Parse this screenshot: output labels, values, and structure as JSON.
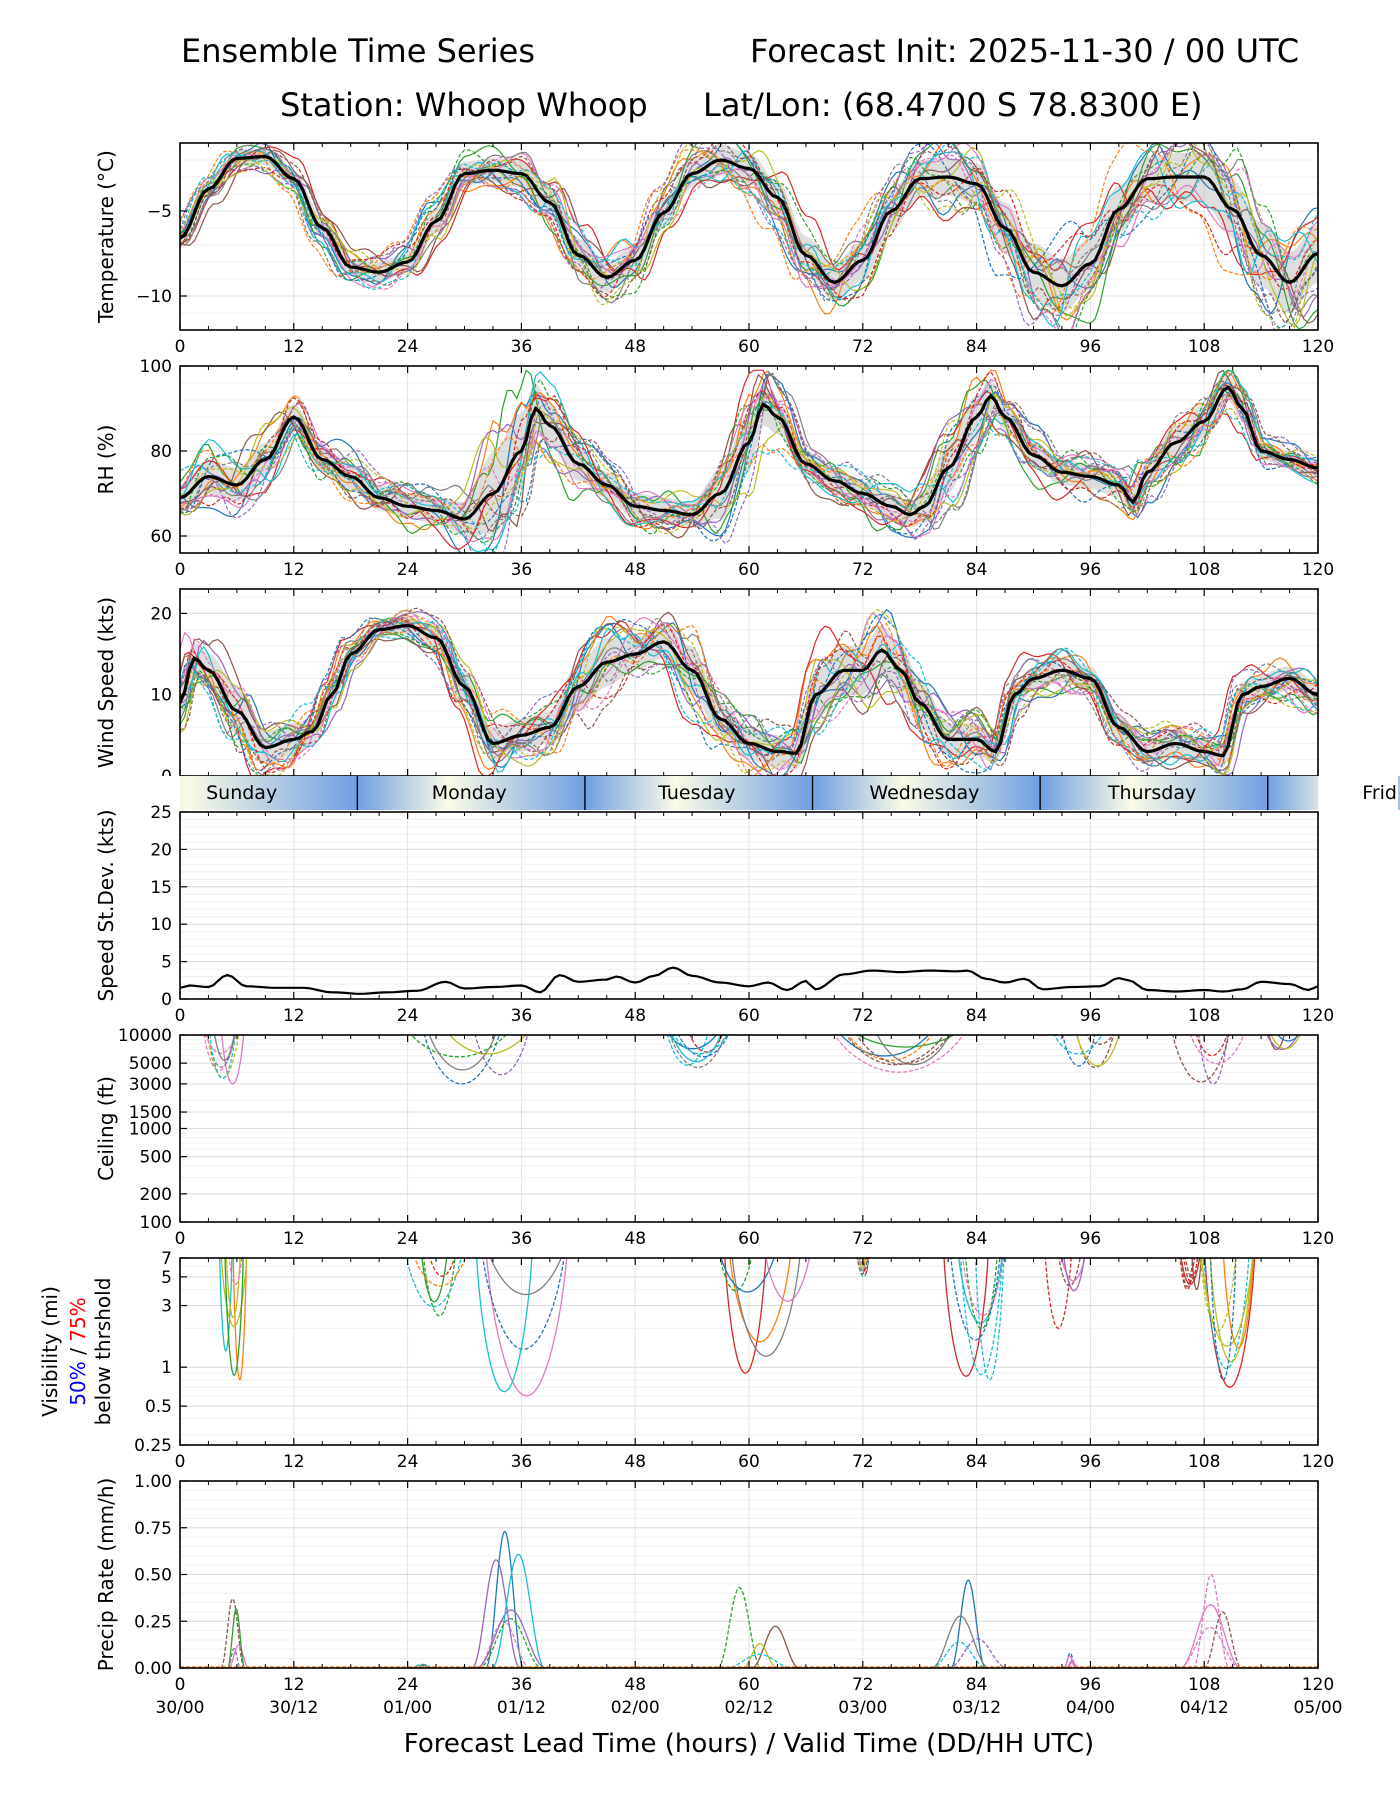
{
  "header": {
    "title_left": "Ensemble Time Series",
    "title_right": "Forecast Init: 2025-11-30 / 00 UTC",
    "station": "Station: Whoop Whoop",
    "latlon": "Lat/Lon: (68.4700 S 78.8300 E)"
  },
  "colors": {
    "ensemble": [
      "#1f77b4",
      "#ff7f0e",
      "#2ca02c",
      "#d62728",
      "#9467bd",
      "#8c564b",
      "#e377c2",
      "#7f7f7f",
      "#bcbd22",
      "#17becf"
    ],
    "mean": "#000000",
    "spread": "#c8c8c8",
    "day_blue": "#6f9fe2",
    "day_cream": "#fbfbe6",
    "vis_50": "#0000ff",
    "vis_75": "#ff0000"
  },
  "chart_data": [
    {
      "type": "line",
      "id": "temp",
      "ylabel": "Temperature (°C)",
      "ylim": [
        -12,
        -1
      ],
      "yticks": [
        -10,
        -5
      ],
      "ytick_labels": [
        "−10",
        "−5"
      ],
      "mean": [
        [
          0,
          -6.6
        ],
        [
          3,
          -3.7
        ],
        [
          6,
          -1.9
        ],
        [
          9,
          -1.8
        ],
        [
          12,
          -3.1
        ],
        [
          15,
          -6.0
        ],
        [
          18,
          -8.3
        ],
        [
          21,
          -8.6
        ],
        [
          24,
          -8.0
        ],
        [
          27,
          -5.6
        ],
        [
          30,
          -2.8
        ],
        [
          33,
          -2.6
        ],
        [
          36,
          -2.8
        ],
        [
          39,
          -4.5
        ],
        [
          42,
          -7.6
        ],
        [
          45,
          -8.9
        ],
        [
          48,
          -7.9
        ],
        [
          51,
          -5.1
        ],
        [
          54,
          -2.8
        ],
        [
          57,
          -2.0
        ],
        [
          60,
          -2.5
        ],
        [
          63,
          -4.2
        ],
        [
          66,
          -7.6
        ],
        [
          69,
          -9.2
        ],
        [
          72,
          -7.9
        ],
        [
          75,
          -5.0
        ],
        [
          78,
          -3.1
        ],
        [
          81,
          -3.0
        ],
        [
          84,
          -3.4
        ],
        [
          87,
          -6.0
        ],
        [
          90,
          -8.6
        ],
        [
          93,
          -9.4
        ],
        [
          96,
          -8.1
        ],
        [
          99,
          -4.9
        ],
        [
          102,
          -3.1
        ],
        [
          105,
          -3.0
        ],
        [
          108,
          -3.0
        ],
        [
          111,
          -4.9
        ],
        [
          114,
          -7.6
        ],
        [
          117,
          -9.2
        ],
        [
          120,
          -7.5
        ]
      ],
      "spread": [
        0.4,
        0.4,
        0.5,
        0.5,
        0.5,
        0.6,
        0.5,
        0.6,
        0.6,
        0.7,
        0.7,
        0.7,
        0.8,
        0.9,
        1.0,
        0.9,
        0.9,
        0.9,
        0.8,
        0.9,
        0.9,
        1.0,
        1.1,
        1.1,
        1.2,
        1.2,
        1.1,
        1.1,
        1.2,
        1.5,
        1.7,
        1.6,
        1.5,
        1.4,
        1.3,
        1.4,
        1.5,
        1.7,
        1.9,
        1.8,
        1.7
      ],
      "members": 20
    },
    {
      "type": "line",
      "id": "rh",
      "ylabel": "RH (%)",
      "ylim": [
        56,
        100
      ],
      "yticks": [
        60,
        80,
        100
      ],
      "ytick_labels": [
        "60",
        "80",
        "100"
      ],
      "mean": [
        [
          0,
          69
        ],
        [
          3,
          74
        ],
        [
          6,
          72
        ],
        [
          9,
          78
        ],
        [
          12,
          88
        ],
        [
          15,
          78
        ],
        [
          18,
          74
        ],
        [
          21,
          69
        ],
        [
          24,
          67
        ],
        [
          27,
          66
        ],
        [
          30,
          64
        ],
        [
          33,
          70
        ],
        [
          36,
          80
        ],
        [
          37.5,
          90
        ],
        [
          39,
          86
        ],
        [
          42,
          77
        ],
        [
          45,
          72
        ],
        [
          48,
          67
        ],
        [
          51,
          66
        ],
        [
          54,
          65
        ],
        [
          57,
          70
        ],
        [
          60,
          82
        ],
        [
          61.5,
          91
        ],
        [
          63,
          88
        ],
        [
          66,
          77
        ],
        [
          69,
          73
        ],
        [
          72,
          70
        ],
        [
          75,
          67
        ],
        [
          77,
          65
        ],
        [
          78.5,
          67
        ],
        [
          81,
          76
        ],
        [
          84,
          88
        ],
        [
          85.5,
          93
        ],
        [
          87,
          88
        ],
        [
          90,
          79
        ],
        [
          93,
          75
        ],
        [
          96,
          74
        ],
        [
          99,
          72
        ],
        [
          100.5,
          68
        ],
        [
          102,
          75
        ],
        [
          105,
          82
        ],
        [
          108,
          87
        ],
        [
          110.5,
          95
        ],
        [
          112,
          90
        ],
        [
          114,
          80
        ],
        [
          117,
          78
        ],
        [
          120,
          76
        ]
      ],
      "spread": [
        3,
        4,
        4,
        4,
        3,
        3,
        3,
        3,
        3,
        3,
        4,
        10,
        9,
        6,
        5,
        4,
        3,
        3,
        3,
        3,
        6,
        7,
        5,
        4,
        3,
        3,
        3,
        3,
        3,
        4,
        6,
        5,
        4,
        3,
        3,
        3,
        3,
        3,
        3,
        3,
        4,
        4,
        3,
        3,
        2,
        2,
        2
      ],
      "members": 20
    },
    {
      "type": "line",
      "id": "wind",
      "ylabel": "Wind Speed (kts)",
      "ylim": [
        0,
        23
      ],
      "yticks": [
        0,
        10,
        20
      ],
      "ytick_labels": [
        "0",
        "10",
        "20"
      ],
      "mean": [
        [
          0,
          9
        ],
        [
          1.5,
          14.5
        ],
        [
          3,
          13
        ],
        [
          6,
          8
        ],
        [
          9,
          3.5
        ],
        [
          12,
          4.5
        ],
        [
          14,
          5.5
        ],
        [
          16,
          10
        ],
        [
          18,
          15
        ],
        [
          21,
          18
        ],
        [
          24,
          18.5
        ],
        [
          27,
          17
        ],
        [
          30,
          11
        ],
        [
          33,
          4
        ],
        [
          36,
          5
        ],
        [
          39,
          6
        ],
        [
          42,
          11
        ],
        [
          45,
          14
        ],
        [
          48,
          15
        ],
        [
          51,
          16.5
        ],
        [
          54,
          13
        ],
        [
          57,
          7
        ],
        [
          60,
          4
        ],
        [
          63,
          3
        ],
        [
          65,
          2.8
        ],
        [
          67,
          10
        ],
        [
          70,
          13
        ],
        [
          72,
          13
        ],
        [
          74,
          15.5
        ],
        [
          76,
          13
        ],
        [
          78,
          9
        ],
        [
          81,
          4.5
        ],
        [
          84,
          4.5
        ],
        [
          86,
          3
        ],
        [
          88,
          10
        ],
        [
          90,
          12
        ],
        [
          93,
          13
        ],
        [
          96,
          12
        ],
        [
          99,
          6
        ],
        [
          102,
          3
        ],
        [
          105,
          4
        ],
        [
          108,
          3
        ],
        [
          110,
          2.5
        ],
        [
          112,
          10
        ],
        [
          114,
          11
        ],
        [
          117,
          12
        ],
        [
          120,
          10
        ]
      ],
      "spread": [
        2,
        2,
        2,
        3,
        2,
        2,
        1.5,
        1.5,
        1,
        1,
        1,
        1.5,
        2,
        2,
        2,
        2,
        3,
        3,
        2,
        2,
        3,
        2,
        2,
        2,
        2,
        3,
        3,
        3,
        3,
        3,
        3,
        2,
        2,
        1.5,
        1.5,
        1.5,
        1.5,
        1.5,
        1.5,
        1.5,
        1.5,
        1.5,
        1.5,
        1.5,
        1.5,
        1.5,
        1.5
      ],
      "members": 20
    },
    {
      "type": "bar",
      "id": "days",
      "ylabel": "",
      "labels": [
        "Sunday",
        "Monday",
        "Tuesday",
        "Wednesday",
        "Thursday",
        "Frid"
      ],
      "centers": [
        6.5,
        30.5,
        54.5,
        78.5,
        102.5,
        126.5
      ],
      "boundaries": [
        18.7,
        42.7,
        66.7,
        90.7,
        114.7
      ]
    },
    {
      "type": "line",
      "id": "spdstd",
      "ylabel": "Speed St.Dev. (kts)",
      "ylim": [
        0,
        25
      ],
      "yticks": [
        0,
        5,
        10,
        15,
        20,
        25
      ],
      "ytick_labels": [
        "0",
        "5",
        "10",
        "15",
        "20",
        "25"
      ],
      "mean": [
        [
          0,
          1.5
        ],
        [
          1,
          1.8
        ],
        [
          3,
          1.6
        ],
        [
          5,
          3.2
        ],
        [
          7,
          1.7
        ],
        [
          10,
          1.5
        ],
        [
          13,
          1.5
        ],
        [
          16,
          0.9
        ],
        [
          19,
          0.7
        ],
        [
          22,
          0.9
        ],
        [
          25,
          1.1
        ],
        [
          28,
          2.3
        ],
        [
          30,
          1.4
        ],
        [
          33,
          1.6
        ],
        [
          36,
          1.8
        ],
        [
          38,
          0.9
        ],
        [
          40,
          3.2
        ],
        [
          42,
          2.3
        ],
        [
          45,
          2.6
        ],
        [
          46,
          3.0
        ],
        [
          48,
          2.2
        ],
        [
          50,
          3.1
        ],
        [
          52,
          4.2
        ],
        [
          54,
          3.1
        ],
        [
          57,
          2.2
        ],
        [
          60,
          1.7
        ],
        [
          62,
          2.2
        ],
        [
          64,
          1.2
        ],
        [
          66,
          2.4
        ],
        [
          67,
          1.3
        ],
        [
          70,
          3.3
        ],
        [
          73,
          3.8
        ],
        [
          76,
          3.6
        ],
        [
          79,
          3.8
        ],
        [
          82,
          3.7
        ],
        [
          83,
          3.8
        ],
        [
          85,
          2.7
        ],
        [
          87,
          2.2
        ],
        [
          89,
          2.7
        ],
        [
          91,
          1.3
        ],
        [
          94,
          1.6
        ],
        [
          97,
          1.7
        ],
        [
          99,
          2.8
        ],
        [
          100,
          2.5
        ],
        [
          102,
          1.2
        ],
        [
          105,
          1.0
        ],
        [
          108,
          1.2
        ],
        [
          110,
          1.0
        ],
        [
          112,
          1.3
        ],
        [
          114,
          2.3
        ],
        [
          117,
          2.0
        ],
        [
          119,
          1.2
        ],
        [
          120,
          1.7
        ]
      ]
    },
    {
      "type": "line",
      "id": "ceiling",
      "ylabel": "Ceiling (ft)",
      "yscale": "log",
      "ylim": [
        100,
        10000
      ],
      "yticks": [
        100,
        200,
        500,
        1000,
        1500,
        3000,
        5000,
        10000
      ],
      "ytick_labels": [
        "100",
        "200",
        "500",
        "1000",
        "1500",
        "3000",
        "5000",
        "10000"
      ],
      "events": [
        [
          2,
          7,
          3000
        ],
        [
          23,
          38,
          3000
        ],
        [
          50,
          59,
          4500
        ],
        [
          68,
          87,
          4000
        ],
        [
          91,
          101,
          4500
        ],
        [
          104,
          113,
          3000
        ],
        [
          114,
          120,
          7000
        ]
      ]
    },
    {
      "type": "line",
      "id": "vis",
      "ylabel": "Visibility (mi)",
      "yscale": "log",
      "ylabel_parts": [
        "Visibility (mi)",
        "50%",
        " / ",
        "75%",
        "below thrshold"
      ],
      "ylim": [
        0.25,
        7
      ],
      "yticks": [
        0.25,
        0.5,
        1,
        3,
        5,
        7
      ],
      "ytick_labels": [
        "0.25",
        "0.5",
        "1",
        "3",
        "5",
        "7"
      ],
      "events": [
        [
          4,
          7.5,
          0.8
        ],
        [
          23,
          31,
          2.5
        ],
        [
          30,
          42,
          0.6
        ],
        [
          56,
          67,
          0.9
        ],
        [
          71,
          73,
          5
        ],
        [
          80,
          88,
          0.8
        ],
        [
          91,
          96,
          2.0
        ],
        [
          105,
          108,
          4
        ],
        [
          107,
          114,
          0.7
        ]
      ]
    },
    {
      "type": "line",
      "id": "precip",
      "ylabel": "Precip Rate (mm/h)",
      "ylim": [
        0,
        1
      ],
      "yticks": [
        0,
        0.25,
        0.5,
        0.75,
        1
      ],
      "ytick_labels": [
        "0.00",
        "0.25",
        "0.50",
        "0.75",
        "1.00"
      ],
      "events": [
        [
          4,
          7.5,
          0.37
        ],
        [
          24,
          27,
          0.02
        ],
        [
          30,
          39,
          0.73
        ],
        [
          56,
          66,
          0.43
        ],
        [
          79,
          88,
          0.47
        ],
        [
          93,
          95,
          0.08
        ],
        [
          105,
          113,
          0.5
        ]
      ]
    }
  ],
  "axes": {
    "xlim": [
      0,
      120
    ],
    "xticks": [
      0,
      12,
      24,
      36,
      48,
      60,
      72,
      84,
      96,
      108,
      120
    ],
    "xtick_labels": [
      "0",
      "12",
      "24",
      "36",
      "48",
      "60",
      "72",
      "84",
      "96",
      "108",
      "120"
    ],
    "valid_time_labels": [
      "30/00",
      "30/12",
      "01/00",
      "01/12",
      "02/00",
      "02/12",
      "03/00",
      "03/12",
      "04/00",
      "04/12",
      "05/00"
    ],
    "xlabel": "Forecast Lead Time (hours) / Valid Time (DD/HH UTC)"
  }
}
